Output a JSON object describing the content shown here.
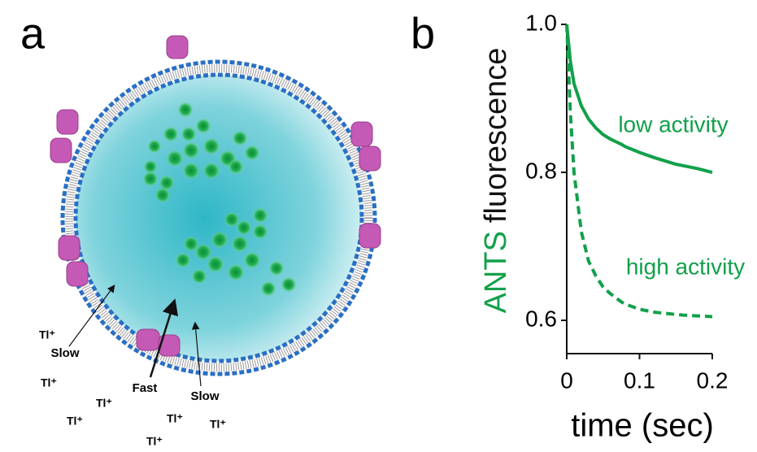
{
  "panel_labels": [
    "a",
    "b"
  ],
  "diagram": {
    "ions": [
      "Tl⁺",
      "Tl⁺",
      "Tl⁺",
      "Tl⁺",
      "Tl⁺",
      "Tl⁺",
      "Tl⁺"
    ],
    "arrows": [
      "Slow",
      "Fast",
      "Slow"
    ]
  },
  "chart_data": {
    "type": "line",
    "ylabel_parts": [
      "ANTS",
      "fluorescence"
    ],
    "ylabel_colors": [
      "#12a04a",
      "#111111"
    ],
    "xlabel": "time (sec)",
    "x": [
      0,
      0.005,
      0.01,
      0.02,
      0.03,
      0.04,
      0.05,
      0.06,
      0.075,
      0.08,
      0.1,
      0.12,
      0.14,
      0.15,
      0.16,
      0.18,
      0.2
    ],
    "series": [
      {
        "name": "low activity",
        "color": "#12a04a",
        "linestyle": "solid",
        "values": [
          1.0,
          0.95,
          0.92,
          0.89,
          0.872,
          0.86,
          0.851,
          0.845,
          0.838,
          0.835,
          0.827,
          0.82,
          0.814,
          0.811,
          0.809,
          0.805,
          0.8
        ]
      },
      {
        "name": "high activity",
        "color": "#12a04a",
        "linestyle": "dashed",
        "values": [
          1.0,
          0.88,
          0.8,
          0.72,
          0.68,
          0.66,
          0.645,
          0.636,
          0.625,
          0.622,
          0.615,
          0.611,
          0.609,
          0.608,
          0.607,
          0.606,
          0.605
        ]
      }
    ],
    "xlim": [
      0,
      0.2
    ],
    "xticks": [
      0,
      0.1,
      0.2
    ],
    "ylim": [
      0.555,
      1.0
    ],
    "yticks": [
      {
        "value": 1,
        "label": "1.0"
      },
      0.8,
      0.6
    ]
  }
}
